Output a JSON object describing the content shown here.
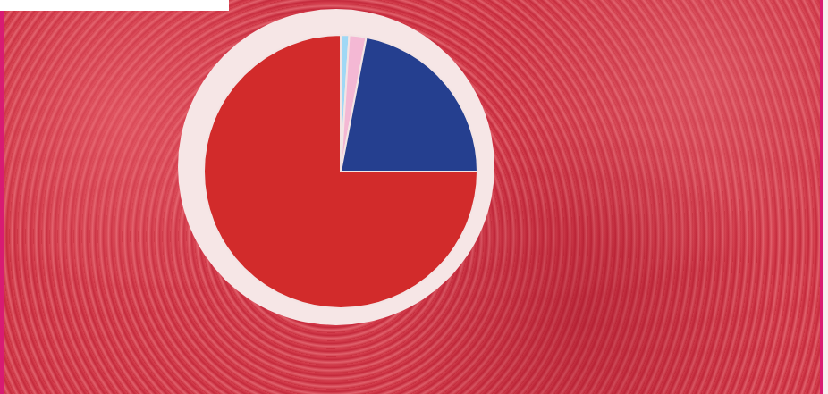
{
  "chart_data": {
    "type": "pie",
    "values": [
      1,
      2,
      22,
      75
    ],
    "colors": [
      "#9fd8f5",
      "#f4b8d4",
      "#253f8f",
      "#d22b2b"
    ]
  }
}
